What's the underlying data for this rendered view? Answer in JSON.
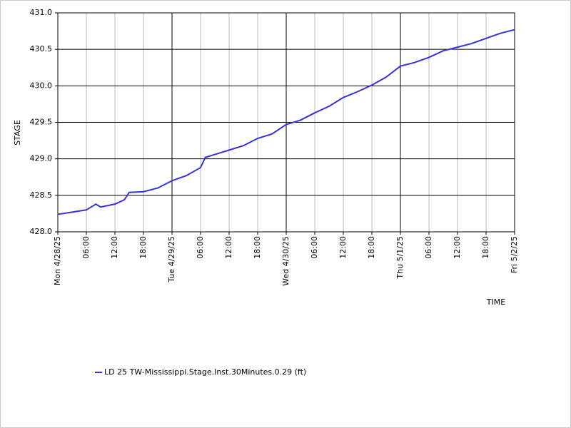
{
  "chart_data": {
    "type": "line",
    "y_label": "STAGE",
    "x_label": "TIME",
    "x": [
      0,
      3,
      6,
      8,
      9,
      12,
      14,
      15,
      18,
      21,
      24,
      27,
      30,
      31,
      33,
      36,
      39,
      42,
      45,
      48,
      51,
      54,
      57,
      60,
      63,
      66,
      69,
      72,
      75,
      78,
      81,
      84,
      87,
      90,
      93,
      96
    ],
    "series": [
      {
        "name": "LD 25 TW-Mississippi.Stage.Inst.30Minutes.0.29 (ft)",
        "color": "#3333dd",
        "values": [
          428.24,
          428.27,
          428.3,
          428.38,
          428.34,
          428.38,
          428.44,
          428.54,
          428.55,
          428.6,
          428.7,
          428.77,
          428.88,
          429.02,
          429.06,
          429.12,
          429.18,
          429.28,
          429.34,
          429.47,
          429.53,
          429.63,
          429.72,
          429.84,
          429.92,
          430.01,
          430.12,
          430.27,
          430.32,
          430.39,
          430.48,
          430.53,
          430.58,
          430.65,
          430.72,
          430.77
        ]
      }
    ],
    "xlim": [
      0,
      96
    ],
    "xticks": [
      {
        "value": 0,
        "label": "Mon 4/28/25"
      },
      {
        "value": 6,
        "label": "06:00"
      },
      {
        "value": 12,
        "label": "12:00"
      },
      {
        "value": 18,
        "label": "18:00"
      },
      {
        "value": 24,
        "label": "Tue 4/29/25"
      },
      {
        "value": 30,
        "label": "06:00"
      },
      {
        "value": 36,
        "label": "12:00"
      },
      {
        "value": 42,
        "label": "18:00"
      },
      {
        "value": 48,
        "label": "Wed 4/30/25"
      },
      {
        "value": 54,
        "label": "06:00"
      },
      {
        "value": 60,
        "label": "12:00"
      },
      {
        "value": 66,
        "label": "18:00"
      },
      {
        "value": 72,
        "label": "Thu 5/1/25"
      },
      {
        "value": 78,
        "label": "06:00"
      },
      {
        "value": 84,
        "label": "12:00"
      },
      {
        "value": 90,
        "label": "18:00"
      },
      {
        "value": 96,
        "label": "Fri 5/2/25"
      }
    ],
    "ylim": [
      428,
      431
    ],
    "yticks": [
      {
        "value": 428,
        "label": "428.0"
      },
      {
        "value": 428.5,
        "label": "428.5"
      },
      {
        "value": 429,
        "label": "429.0"
      },
      {
        "value": 429.5,
        "label": "429.5"
      },
      {
        "value": 430,
        "label": "430.0"
      },
      {
        "value": 430.5,
        "label": "430.5"
      },
      {
        "value": 431,
        "label": "431.0"
      }
    ],
    "grid": true
  }
}
